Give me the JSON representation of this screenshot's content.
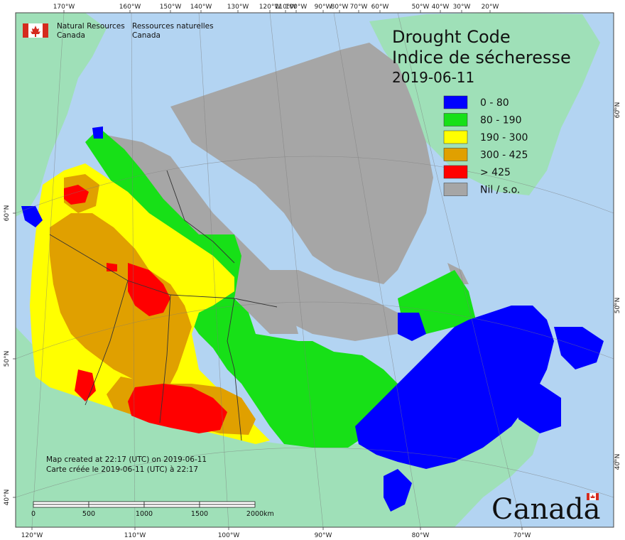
{
  "header": {
    "agency_en_line1": "Natural Resources",
    "agency_en_line2": "Canada",
    "agency_fr_line1": "Ressources naturelles",
    "agency_fr_line2": "Canada"
  },
  "title": {
    "line1": "Drought Code",
    "line2": "Indice de sécheresse",
    "date": "2019-06-11"
  },
  "legend": [
    {
      "label": "0 - 80",
      "color": "#0000ff"
    },
    {
      "label": "80 - 190",
      "color": "#17e017"
    },
    {
      "label": "190 - 300",
      "color": "#ffff00"
    },
    {
      "label": "300 - 425",
      "color": "#e0a000"
    },
    {
      "label": "> 425",
      "color": "#ff0000"
    },
    {
      "label": "Nil / s.o.",
      "color": "#a6a6a6"
    }
  ],
  "credits": {
    "line1": "Map created at 22:17 (UTC) on 2019-06-11",
    "line2": "Carte créée le 2019-06-11 (UTC) à 22:17"
  },
  "scalebar": {
    "labels": [
      "0",
      "500",
      "1000",
      "1500",
      "2000"
    ],
    "unit": "km"
  },
  "wordmark": "Canada",
  "axes": {
    "top": [
      "170°W",
      "160°W",
      "150°W",
      "140°W",
      "130°W",
      "120°W",
      "110°W",
      "100°W",
      "90°W",
      "80°W",
      "70°W",
      "60°W",
      "50°W",
      "40°W",
      "30°W",
      "20°W"
    ],
    "bottom": [
      "120°W",
      "110°W",
      "100°W",
      "90°W",
      "80°W",
      "70°W"
    ],
    "left": [
      "60°N",
      "50°N",
      "40°N"
    ],
    "right": [
      "60°N",
      "50°N",
      "40°N"
    ]
  },
  "colors": {
    "ocean": "#b3d4f2",
    "land_other": "#9fe0b8",
    "nodata": "#a6a6a6",
    "flag_red": "#d52b1e"
  }
}
